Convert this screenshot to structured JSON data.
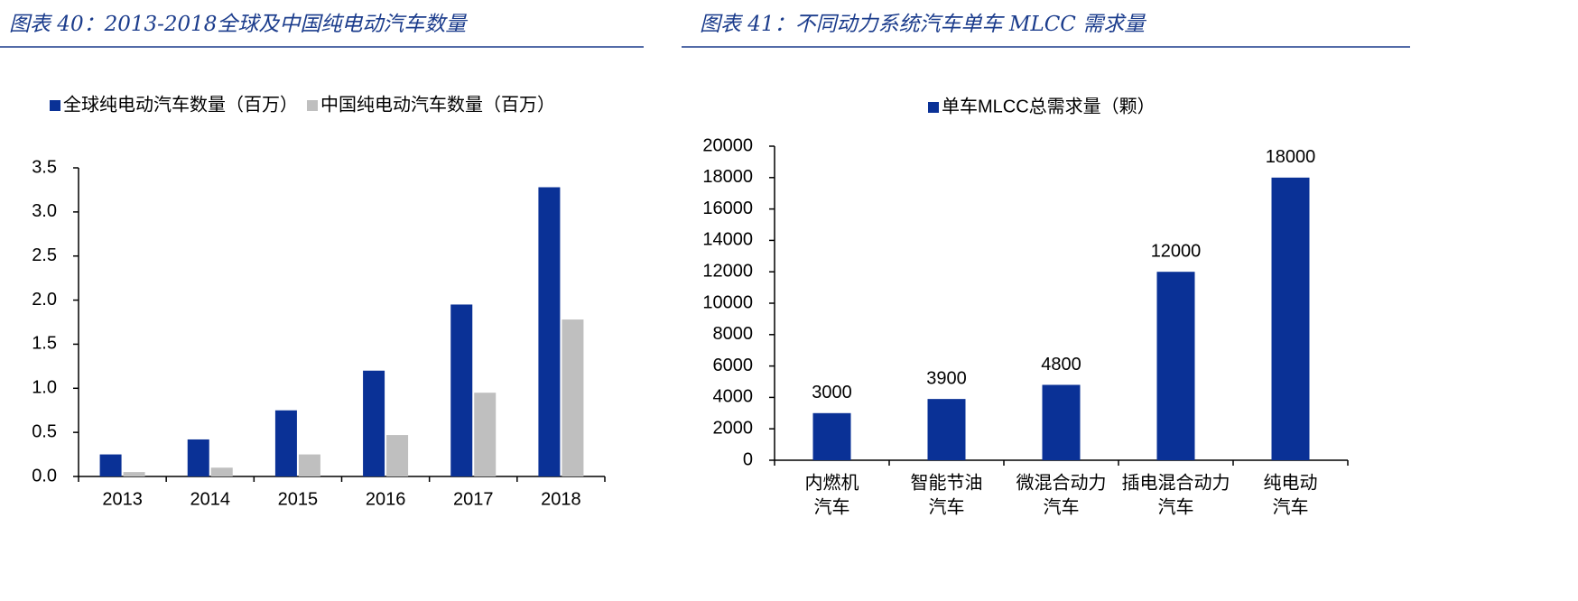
{
  "chart_data": [
    {
      "type": "bar",
      "title": "图表 40：2013-2018全球及中国纯电动汽车数量",
      "categories": [
        "2013",
        "2014",
        "2015",
        "2016",
        "2017",
        "2018"
      ],
      "series": [
        {
          "name": "全球纯电动汽车数量（百万）",
          "color": "#0a3196",
          "values": [
            0.25,
            0.42,
            0.75,
            1.2,
            1.95,
            3.28
          ]
        },
        {
          "name": "中国纯电动汽车数量（百万）",
          "color": "#bfbfbf",
          "values": [
            0.05,
            0.1,
            0.25,
            0.47,
            0.95,
            1.78
          ]
        }
      ],
      "ylim": [
        0,
        3.5
      ],
      "yticks": [
        {
          "value": 0,
          "label": "0.0"
        },
        0.5,
        {
          "value": 1,
          "label": "1.0"
        },
        1.5,
        {
          "value": 2,
          "label": "2.0"
        },
        2.5,
        {
          "value": 3,
          "label": "3.0"
        },
        3.5
      ],
      "data_labels": false
    },
    {
      "type": "bar",
      "title": "图表 41：不同动力系统汽车单车 MLCC 需求量",
      "categories": [
        [
          "内燃机",
          "汽车"
        ],
        [
          "智能节油",
          "汽车"
        ],
        [
          "微混合动力",
          "汽车"
        ],
        [
          "插电混合动力",
          "汽车"
        ],
        [
          "纯电动",
          "汽车"
        ]
      ],
      "series": [
        {
          "name": "单车MLCC总需求量（颗）",
          "color": "#0a3196",
          "values": [
            3000,
            3900,
            4800,
            12000,
            18000
          ]
        }
      ],
      "ylim": [
        0,
        20000
      ],
      "yticks": [
        0,
        2000,
        4000,
        6000,
        8000,
        10000,
        12000,
        14000,
        16000,
        18000,
        20000
      ],
      "data_labels": true
    }
  ]
}
